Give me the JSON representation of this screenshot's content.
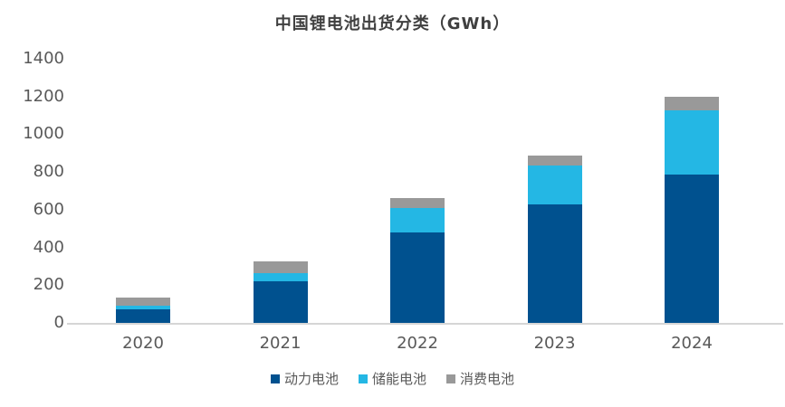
{
  "title": "中国锂电池出货分类（GWh）",
  "chart_data": {
    "type": "bar",
    "stacked": true,
    "title": "中国锂电池出货分类（GWh）",
    "categories": [
      "2020",
      "2021",
      "2022",
      "2023",
      "2024"
    ],
    "series": [
      {
        "name": "动力电池",
        "color": "#00518F",
        "values": [
          70,
          220,
          480,
          630,
          785
        ]
      },
      {
        "name": "储能电池",
        "color": "#24B7E4",
        "values": [
          20,
          45,
          130,
          205,
          340
        ]
      },
      {
        "name": "消费电池",
        "color": "#999999",
        "values": [
          45,
          60,
          50,
          50,
          75
        ]
      }
    ],
    "totals": [
      135,
      325,
      660,
      885,
      1200
    ],
    "ylim": [
      0,
      1400
    ],
    "yticks": [
      0,
      200,
      400,
      600,
      800,
      1000,
      1200,
      1400
    ],
    "xlabel": "",
    "ylabel": "",
    "grid": false,
    "legend_position": "bottom"
  },
  "colors": {
    "background": "#FFFFFF",
    "axis_line": "#D6D6D6",
    "tick_label": "#595959",
    "title_text": "#404040"
  }
}
